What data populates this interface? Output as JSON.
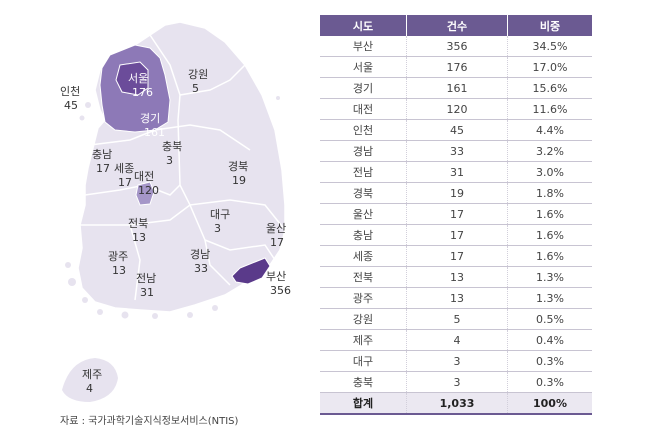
{
  "colors": {
    "land": "#e7e3ef",
    "border": "#ffffff",
    "highlight_strong": "#6b4c9a",
    "highlight_mid": "#8d79b7",
    "highlight_light": "#a596c8",
    "header": "#6b5a92",
    "total_row_bg": "#ebe8f1"
  },
  "map": {
    "regions": [
      {
        "name": "인천",
        "count": "45"
      },
      {
        "name": "서울",
        "count": "176"
      },
      {
        "name": "경기",
        "count": "161"
      },
      {
        "name": "강원",
        "count": "5"
      },
      {
        "name": "충남",
        "count": "17"
      },
      {
        "name": "세종",
        "count": "17"
      },
      {
        "name": "대전",
        "count": "120"
      },
      {
        "name": "충북",
        "count": "3"
      },
      {
        "name": "경북",
        "count": "19"
      },
      {
        "name": "전북",
        "count": "13"
      },
      {
        "name": "대구",
        "count": "3"
      },
      {
        "name": "울산",
        "count": "17"
      },
      {
        "name": "광주",
        "count": "13"
      },
      {
        "name": "경남",
        "count": "33"
      },
      {
        "name": "전남",
        "count": "31"
      },
      {
        "name": "부산",
        "count": "356"
      },
      {
        "name": "제주",
        "count": "4"
      }
    ]
  },
  "source_note": "자료 : 국가과학기술지식정보서비스(NTIS)",
  "table": {
    "headers": [
      "시도",
      "건수",
      "비중"
    ],
    "rows": [
      [
        "부산",
        "356",
        "34.5%"
      ],
      [
        "서울",
        "176",
        "17.0%"
      ],
      [
        "경기",
        "161",
        "15.6%"
      ],
      [
        "대전",
        "120",
        "11.6%"
      ],
      [
        "인천",
        "45",
        "4.4%"
      ],
      [
        "경남",
        "33",
        "3.2%"
      ],
      [
        "전남",
        "31",
        "3.0%"
      ],
      [
        "경북",
        "19",
        "1.8%"
      ],
      [
        "울산",
        "17",
        "1.6%"
      ],
      [
        "충남",
        "17",
        "1.6%"
      ],
      [
        "세종",
        "17",
        "1.6%"
      ],
      [
        "전북",
        "13",
        "1.3%"
      ],
      [
        "광주",
        "13",
        "1.3%"
      ],
      [
        "강원",
        "5",
        "0.5%"
      ],
      [
        "제주",
        "4",
        "0.4%"
      ],
      [
        "대구",
        "3",
        "0.3%"
      ],
      [
        "충북",
        "3",
        "0.3%"
      ]
    ],
    "total": [
      "합계",
      "1,033",
      "100%"
    ]
  }
}
